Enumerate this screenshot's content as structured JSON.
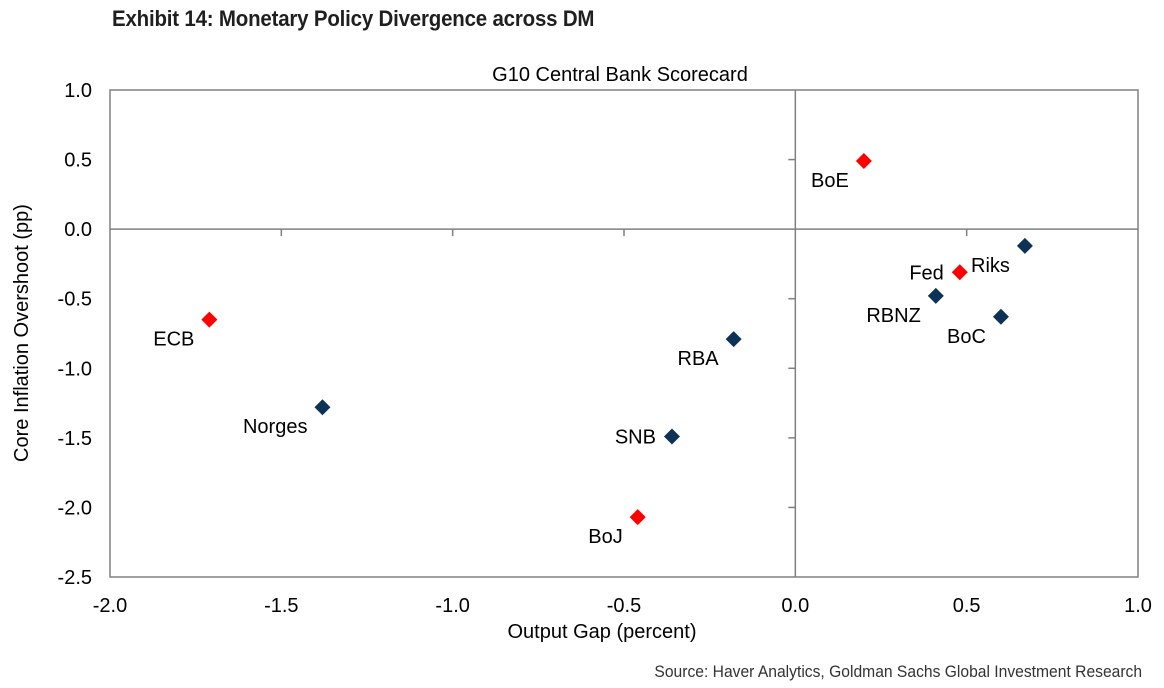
{
  "exhibit_title": "Exhibit 14: Monetary Policy Divergence across DM",
  "source": "Source: Haver Analytics, Goldman Sachs Global Investment Research",
  "colors": {
    "hawkish": "#ff0000",
    "dovish": "#0d3256",
    "axis": "#808080"
  },
  "chart_data": {
    "type": "scatter",
    "title": "G10 Central Bank Scorecard",
    "xlabel": "Output Gap (percent)",
    "ylabel": "Core Inflation Overshoot (pp)",
    "xlim": [
      -2.0,
      1.0
    ],
    "ylim": [
      -2.5,
      1.0
    ],
    "x_ticks": [
      -2.0,
      -1.5,
      -1.0,
      -0.5,
      0.0,
      0.5,
      1.0
    ],
    "y_ticks": [
      1.0,
      0.5,
      0.0,
      -0.5,
      -1.0,
      -1.5,
      -2.0,
      -2.5
    ],
    "x_tick_labels": [
      "-2.0",
      "-1.5",
      "-1.0",
      "-0.5",
      "0.0",
      "0.5",
      "1.0"
    ],
    "y_tick_labels": [
      "1.0",
      "0.5",
      "0.0",
      "-0.5",
      "-1.0",
      "-1.5",
      "-2.0",
      "-2.5"
    ],
    "grid": false,
    "marker": "diamond",
    "points": [
      {
        "label": "ECB",
        "x": -1.71,
        "y": -0.65,
        "color": "#ff0000",
        "label_pos": "left-below"
      },
      {
        "label": "Norges",
        "x": -1.38,
        "y": -1.28,
        "color": "#0d3256",
        "label_pos": "left-below"
      },
      {
        "label": "RBA",
        "x": -0.18,
        "y": -0.79,
        "color": "#0d3256",
        "label_pos": "left-below"
      },
      {
        "label": "SNB",
        "x": -0.36,
        "y": -1.49,
        "color": "#0d3256",
        "label_pos": "left"
      },
      {
        "label": "BoJ",
        "x": -0.46,
        "y": -2.07,
        "color": "#ff0000",
        "label_pos": "left-below"
      },
      {
        "label": "BoE",
        "x": 0.2,
        "y": 0.49,
        "color": "#ff0000",
        "label_pos": "left-below"
      },
      {
        "label": "Riks",
        "x": 0.67,
        "y": -0.12,
        "color": "#0d3256",
        "label_pos": "left-below"
      },
      {
        "label": "Fed",
        "x": 0.48,
        "y": -0.31,
        "color": "#ff0000",
        "label_pos": "left"
      },
      {
        "label": "RBNZ",
        "x": 0.41,
        "y": -0.48,
        "color": "#0d3256",
        "label_pos": "left-below"
      },
      {
        "label": "BoC",
        "x": 0.6,
        "y": -0.63,
        "color": "#0d3256",
        "label_pos": "left-below"
      }
    ]
  }
}
